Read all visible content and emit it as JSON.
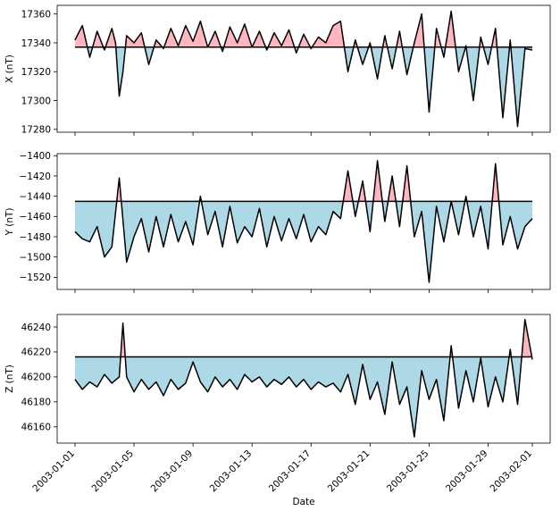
{
  "chart_data": [
    {
      "type": "line",
      "panel": "top",
      "ylabel": "X (nT)",
      "xlabel": "",
      "baseline": 17337,
      "ylim": [
        17278,
        17366
      ],
      "yticks": [
        17280,
        17300,
        17320,
        17340,
        17360
      ],
      "xlim": [
        "2002-12-30T19:00",
        "2003-02-02T05:00"
      ],
      "fill_above_color": "#ffb6c1",
      "fill_below_color": "#add8e6",
      "line_color": "#000000",
      "x": [
        "2003-01-01T00:00",
        "2003-01-01T12:00",
        "2003-01-02T00:00",
        "2003-01-02T12:00",
        "2003-01-03T00:00",
        "2003-01-03T12:00",
        "2003-01-03T18:00",
        "2003-01-04T00:00",
        "2003-01-04T06:00",
        "2003-01-04T12:00",
        "2003-01-05T00:00",
        "2003-01-05T12:00",
        "2003-01-06T00:00",
        "2003-01-06T12:00",
        "2003-01-07T00:00",
        "2003-01-07T12:00",
        "2003-01-08T00:00",
        "2003-01-08T12:00",
        "2003-01-09T00:00",
        "2003-01-09T12:00",
        "2003-01-10T00:00",
        "2003-01-10T12:00",
        "2003-01-11T00:00",
        "2003-01-11T12:00",
        "2003-01-12T00:00",
        "2003-01-12T12:00",
        "2003-01-13T00:00",
        "2003-01-13T12:00",
        "2003-01-14T00:00",
        "2003-01-14T12:00",
        "2003-01-15T00:00",
        "2003-01-15T12:00",
        "2003-01-16T00:00",
        "2003-01-16T12:00",
        "2003-01-17T00:00",
        "2003-01-17T12:00",
        "2003-01-18T00:00",
        "2003-01-18T12:00",
        "2003-01-19T00:00",
        "2003-01-19T12:00",
        "2003-01-20T00:00",
        "2003-01-20T12:00",
        "2003-01-21T00:00",
        "2003-01-21T12:00",
        "2003-01-22T00:00",
        "2003-01-22T12:00",
        "2003-01-23T00:00",
        "2003-01-23T12:00",
        "2003-01-24T00:00",
        "2003-01-24T12:00",
        "2003-01-25T00:00",
        "2003-01-25T12:00",
        "2003-01-26T00:00",
        "2003-01-26T12:00",
        "2003-01-27T00:00",
        "2003-01-27T12:00",
        "2003-01-28T00:00",
        "2003-01-28T12:00",
        "2003-01-29T00:00",
        "2003-01-29T12:00",
        "2003-01-30T00:00",
        "2003-01-30T12:00",
        "2003-01-31T00:00",
        "2003-01-31T12:00",
        "2003-02-01T00:00"
      ],
      "values": [
        17342,
        17352,
        17330,
        17348,
        17335,
        17350,
        17340,
        17303,
        17320,
        17345,
        17340,
        17347,
        17325,
        17342,
        17336,
        17350,
        17338,
        17352,
        17341,
        17355,
        17337,
        17348,
        17334,
        17351,
        17340,
        17353,
        17337,
        17348,
        17335,
        17347,
        17338,
        17349,
        17333,
        17346,
        17336,
        17344,
        17340,
        17352,
        17355,
        17320,
        17342,
        17325,
        17340,
        17315,
        17345,
        17322,
        17348,
        17318,
        17340,
        17360,
        17292,
        17350,
        17330,
        17362,
        17320,
        17338,
        17300,
        17344,
        17325,
        17350,
        17288,
        17342,
        17282,
        17336,
        17335
      ]
    },
    {
      "type": "line",
      "panel": "middle",
      "ylabel": "Y (nT)",
      "xlabel": "",
      "baseline": -1445,
      "ylim": [
        -1532,
        -1398
      ],
      "yticks": [
        -1520,
        -1500,
        -1480,
        -1460,
        -1440,
        -1420,
        -1400
      ],
      "xlim": [
        "2002-12-30T19:00",
        "2003-02-02T05:00"
      ],
      "fill_above_color": "#ffb6c1",
      "fill_below_color": "#add8e6",
      "line_color": "#000000",
      "x": [
        "2003-01-01T00:00",
        "2003-01-01T12:00",
        "2003-01-02T00:00",
        "2003-01-02T12:00",
        "2003-01-03T00:00",
        "2003-01-03T12:00",
        "2003-01-04T00:00",
        "2003-01-04T12:00",
        "2003-01-05T00:00",
        "2003-01-05T12:00",
        "2003-01-06T00:00",
        "2003-01-06T12:00",
        "2003-01-07T00:00",
        "2003-01-07T12:00",
        "2003-01-08T00:00",
        "2003-01-08T12:00",
        "2003-01-09T00:00",
        "2003-01-09T12:00",
        "2003-01-10T00:00",
        "2003-01-10T12:00",
        "2003-01-11T00:00",
        "2003-01-11T12:00",
        "2003-01-12T00:00",
        "2003-01-12T12:00",
        "2003-01-13T00:00",
        "2003-01-13T12:00",
        "2003-01-14T00:00",
        "2003-01-14T12:00",
        "2003-01-15T00:00",
        "2003-01-15T12:00",
        "2003-01-16T00:00",
        "2003-01-16T12:00",
        "2003-01-17T00:00",
        "2003-01-17T12:00",
        "2003-01-18T00:00",
        "2003-01-18T12:00",
        "2003-01-19T00:00",
        "2003-01-19T12:00",
        "2003-01-20T00:00",
        "2003-01-20T12:00",
        "2003-01-21T00:00",
        "2003-01-21T12:00",
        "2003-01-22T00:00",
        "2003-01-22T12:00",
        "2003-01-23T00:00",
        "2003-01-23T12:00",
        "2003-01-24T00:00",
        "2003-01-24T12:00",
        "2003-01-25T00:00",
        "2003-01-25T12:00",
        "2003-01-26T00:00",
        "2003-01-26T12:00",
        "2003-01-27T00:00",
        "2003-01-27T12:00",
        "2003-01-28T00:00",
        "2003-01-28T12:00",
        "2003-01-29T00:00",
        "2003-01-29T12:00",
        "2003-01-30T00:00",
        "2003-01-30T12:00",
        "2003-01-31T00:00",
        "2003-01-31T12:00",
        "2003-02-01T00:00"
      ],
      "values": [
        -1475,
        -1482,
        -1485,
        -1470,
        -1500,
        -1490,
        -1422,
        -1505,
        -1480,
        -1462,
        -1495,
        -1460,
        -1490,
        -1458,
        -1485,
        -1465,
        -1488,
        -1440,
        -1478,
        -1455,
        -1490,
        -1450,
        -1486,
        -1470,
        -1480,
        -1452,
        -1490,
        -1460,
        -1484,
        -1462,
        -1482,
        -1458,
        -1485,
        -1470,
        -1478,
        -1455,
        -1462,
        -1415,
        -1460,
        -1425,
        -1475,
        -1405,
        -1465,
        -1420,
        -1470,
        -1410,
        -1480,
        -1455,
        -1525,
        -1450,
        -1485,
        -1445,
        -1478,
        -1440,
        -1480,
        -1450,
        -1492,
        -1408,
        -1488,
        -1460,
        -1492,
        -1470,
        -1462
      ]
    },
    {
      "type": "line",
      "panel": "bottom",
      "ylabel": "Z (nT)",
      "xlabel": "Date",
      "baseline": 46216,
      "ylim": [
        46147,
        46250
      ],
      "yticks": [
        46160,
        46180,
        46200,
        46220,
        46240
      ],
      "xlim": [
        "2002-12-30T19:00",
        "2003-02-02T05:00"
      ],
      "xticks": [
        "2003-01-01",
        "2003-01-05",
        "2003-01-09",
        "2003-01-13",
        "2003-01-17",
        "2003-01-21",
        "2003-01-25",
        "2003-01-29",
        "2003-02-01"
      ],
      "fill_above_color": "#ffb6c1",
      "fill_below_color": "#add8e6",
      "line_color": "#000000",
      "x": [
        "2003-01-01T00:00",
        "2003-01-01T12:00",
        "2003-01-02T00:00",
        "2003-01-02T12:00",
        "2003-01-03T00:00",
        "2003-01-03T12:00",
        "2003-01-04T00:00",
        "2003-01-04T06:00",
        "2003-01-04T12:00",
        "2003-01-05T00:00",
        "2003-01-05T12:00",
        "2003-01-06T00:00",
        "2003-01-06T12:00",
        "2003-01-07T00:00",
        "2003-01-07T12:00",
        "2003-01-08T00:00",
        "2003-01-08T12:00",
        "2003-01-09T00:00",
        "2003-01-09T12:00",
        "2003-01-10T00:00",
        "2003-01-10T12:00",
        "2003-01-11T00:00",
        "2003-01-11T12:00",
        "2003-01-12T00:00",
        "2003-01-12T12:00",
        "2003-01-13T00:00",
        "2003-01-13T12:00",
        "2003-01-14T00:00",
        "2003-01-14T12:00",
        "2003-01-15T00:00",
        "2003-01-15T12:00",
        "2003-01-16T00:00",
        "2003-01-16T12:00",
        "2003-01-17T00:00",
        "2003-01-17T12:00",
        "2003-01-18T00:00",
        "2003-01-18T12:00",
        "2003-01-19T00:00",
        "2003-01-19T12:00",
        "2003-01-20T00:00",
        "2003-01-20T12:00",
        "2003-01-21T00:00",
        "2003-01-21T12:00",
        "2003-01-22T00:00",
        "2003-01-22T12:00",
        "2003-01-23T00:00",
        "2003-01-23T12:00",
        "2003-01-24T00:00",
        "2003-01-24T12:00",
        "2003-01-25T00:00",
        "2003-01-25T12:00",
        "2003-01-26T00:00",
        "2003-01-26T12:00",
        "2003-01-27T00:00",
        "2003-01-27T12:00",
        "2003-01-28T00:00",
        "2003-01-28T12:00",
        "2003-01-29T00:00",
        "2003-01-29T12:00",
        "2003-01-30T00:00",
        "2003-01-30T12:00",
        "2003-01-31T00:00",
        "2003-01-31T12:00",
        "2003-02-01T00:00"
      ],
      "values": [
        46198,
        46190,
        46196,
        46192,
        46202,
        46195,
        46200,
        46243,
        46200,
        46188,
        46198,
        46190,
        46196,
        46185,
        46198,
        46190,
        46195,
        46212,
        46196,
        46188,
        46200,
        46192,
        46198,
        46190,
        46202,
        46196,
        46200,
        46192,
        46198,
        46194,
        46200,
        46192,
        46198,
        46190,
        46196,
        46192,
        46195,
        46188,
        46202,
        46178,
        46210,
        46182,
        46196,
        46170,
        46212,
        46178,
        46192,
        46152,
        46205,
        46182,
        46198,
        46165,
        46225,
        46175,
        46205,
        46180,
        46215,
        46176,
        46200,
        46180,
        46222,
        46178,
        46246,
        46214
      ]
    }
  ]
}
